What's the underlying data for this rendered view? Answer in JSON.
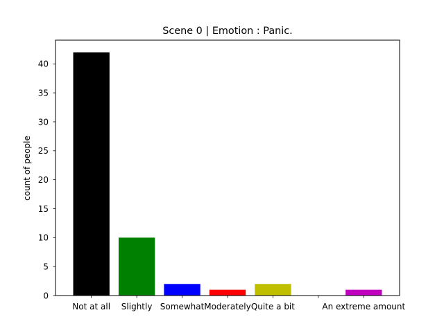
{
  "chart_data": {
    "type": "bar",
    "title": "Scene 0 | Emotion : Panic.",
    "xlabel": "",
    "ylabel": "count of people",
    "categories": [
      "Not at all",
      "Slightly",
      "Somewhat",
      "Moderately",
      "Quite a bit",
      "",
      "An extreme amount"
    ],
    "values": [
      42,
      10,
      2,
      1,
      2,
      0,
      1
    ],
    "colors": [
      "#000000",
      "#008000",
      "#0000ff",
      "#ff0000",
      "#bfbf00",
      "#00bfbf",
      "#bf00bf"
    ],
    "yticks": [
      0,
      5,
      10,
      15,
      20,
      25,
      30,
      35,
      40
    ],
    "ylim": [
      0,
      44.1
    ],
    "grid": false,
    "legend": "none"
  }
}
